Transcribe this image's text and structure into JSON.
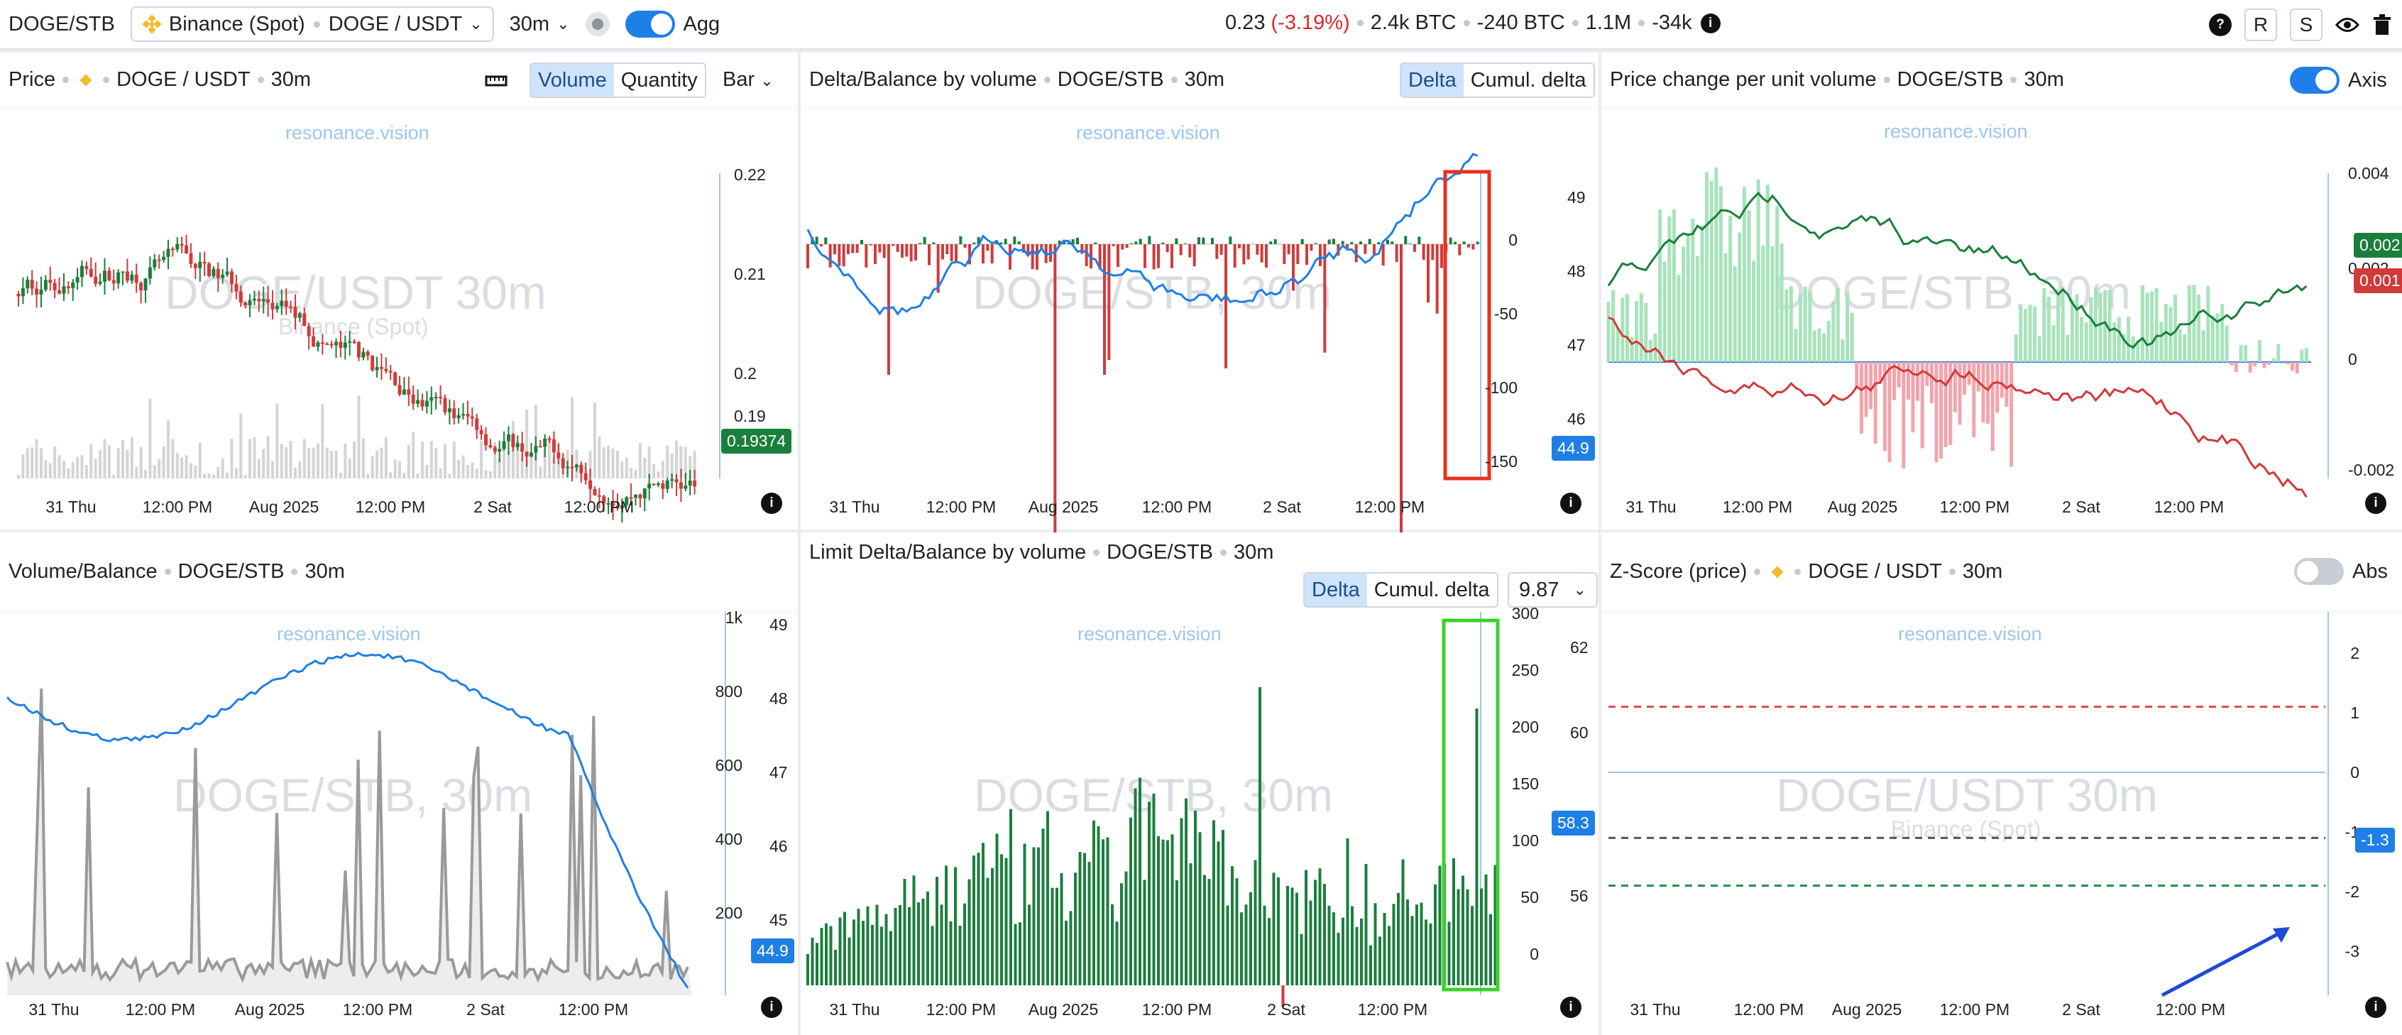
{
  "topbar": {
    "symbol": "DOGE/STB",
    "exchange": "Binance (Spot)",
    "pair": "DOGE / USDT",
    "interval": "30m",
    "agg_label": "Agg",
    "price": "0.23",
    "change": "(-3.19%)",
    "vol_btc": "2.4k BTC",
    "delta_btc": "-240 BTC",
    "trades": "1.1M",
    "delta_trades": "-34k",
    "btn_r": "R",
    "btn_s": "S"
  },
  "x_ticks": [
    "31 Thu",
    "12:00 PM",
    "Aug 2025",
    "12:00 PM",
    "2 Sat",
    "12:00 PM"
  ],
  "watermark_link": "resonance.vision",
  "panels": {
    "price": {
      "title": "Price",
      "pair": "DOGE / USDT",
      "interval": "30m",
      "seg_volume": "Volume",
      "seg_quantity": "Quantity",
      "chart_type": "Bar",
      "watermark": "DOGE/USDT 30m",
      "watermark_sub": "Binance (Spot)",
      "y_ticks": [
        "0.22",
        "0.21",
        "0.2",
        "0.19"
      ],
      "last_badge": "0.19374"
    },
    "delta": {
      "title": "Delta/Balance by volume",
      "symbol": "DOGE/STB",
      "interval": "30m",
      "seg_delta": "Delta",
      "seg_cumul": "Cumul. delta",
      "watermark": "DOGE/STB, 30m",
      "y_left": [
        "0",
        "-50",
        "-100",
        "-150"
      ],
      "y_right": [
        "49",
        "48",
        "47",
        "46"
      ],
      "last_badge": "44.9"
    },
    "pcv": {
      "title": "Price change per unit volume",
      "symbol": "DOGE/STB",
      "interval": "30m",
      "axis_label": "Axis",
      "watermark": "DOGE/STB, 30m",
      "y_ticks": [
        "0.004",
        "0.002",
        "0",
        "-0.002"
      ],
      "badge_green": "0.002",
      "badge_red": "0.001"
    },
    "volume": {
      "title": "Volume/Balance",
      "symbol": "DOGE/STB",
      "interval": "30m",
      "watermark": "DOGE/STB, 30m",
      "y_left": [
        "1k",
        "800",
        "600",
        "400",
        "200"
      ],
      "y_right": [
        "49",
        "48",
        "47",
        "46",
        "45"
      ],
      "last_badge": "44.9"
    },
    "limit": {
      "title": "Limit Delta/Balance by volume",
      "symbol": "DOGE/STB",
      "interval": "30m",
      "seg_delta": "Delta",
      "seg_cumul": "Cumul. delta",
      "select_value": "9.87",
      "watermark": "DOGE/STB, 30m",
      "y_left": [
        "300",
        "250",
        "200",
        "150",
        "100",
        "50",
        "0"
      ],
      "y_right": [
        "62",
        "60",
        "58",
        "56"
      ],
      "last_badge": "58.3"
    },
    "zscore": {
      "title": "Z-Score (price)",
      "pair": "DOGE / USDT",
      "interval": "30m",
      "abs_label": "Abs",
      "watermark": "DOGE/USDT 30m",
      "watermark_sub": "Binance (Spot)",
      "y_ticks": [
        "2",
        "1",
        "0",
        "-1",
        "-2",
        "-3"
      ],
      "last_badge": "-1.3"
    }
  },
  "colors": {
    "blue": "#1e7fe6",
    "green": "#1a7f3c",
    "red": "#d23a3a",
    "light_green": "#a7e3bb",
    "light_red": "#f3a4ac",
    "gray": "#9a9a9a",
    "highlight_red": "#e8321e",
    "highlight_green": "#3ad32b"
  }
}
